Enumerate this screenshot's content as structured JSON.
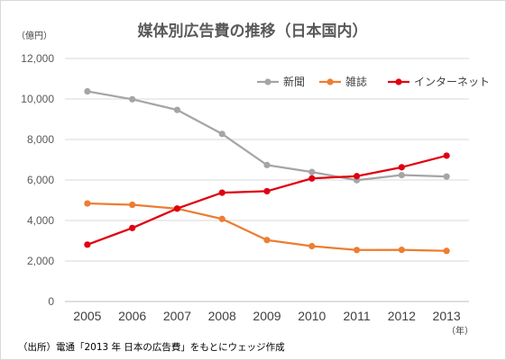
{
  "chart_data": {
    "type": "line",
    "title": "媒体別広告費の推移（日本国内）",
    "ylabel": "（億円）",
    "xlabel": "（年）",
    "categories": [
      "2005",
      "2006",
      "2007",
      "2008",
      "2009",
      "2010",
      "2011",
      "2012",
      "2013"
    ],
    "ylim": [
      0,
      12000
    ],
    "yticks": [
      0,
      2000,
      4000,
      6000,
      8000,
      10000,
      12000
    ],
    "ytick_labels": [
      "0",
      "2,000",
      "4,000",
      "6,000",
      "8,000",
      "10,000",
      "12,000"
    ],
    "grid": true,
    "legend_position": "top-right",
    "series": [
      {
        "name": "新聞",
        "color": "#a5a5a5",
        "values": [
          10377,
          9986,
          9462,
          8276,
          6739,
          6396,
          5990,
          6242,
          6170
        ]
      },
      {
        "name": "雑誌",
        "color": "#ed7d31",
        "values": [
          4842,
          4777,
          4585,
          4078,
          3034,
          2733,
          2542,
          2551,
          2499
        ]
      },
      {
        "name": "インターネット",
        "color": "#e00010",
        "values": [
          2808,
          3630,
          4591,
          5373,
          5448,
          6077,
          6189,
          6629,
          7203
        ]
      }
    ],
    "source": "（出所）電通「2013 年 日本の広告費」をもとにウェッジ作成"
  }
}
